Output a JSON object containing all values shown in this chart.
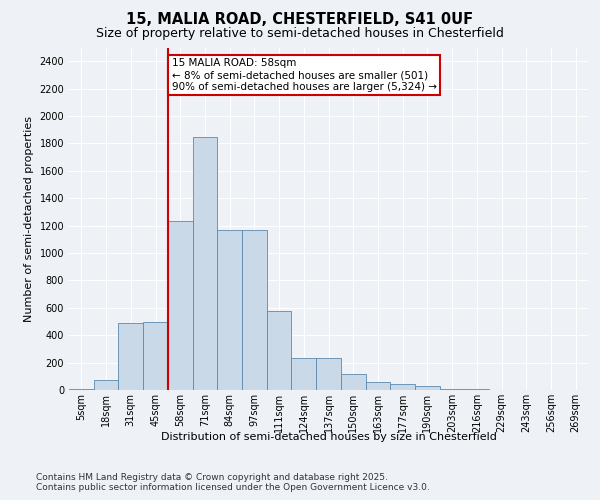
{
  "title1": "15, MALIA ROAD, CHESTERFIELD, S41 0UF",
  "title2": "Size of property relative to semi-detached houses in Chesterfield",
  "xlabel": "Distribution of semi-detached houses by size in Chesterfield",
  "ylabel": "Number of semi-detached properties",
  "property_label": "15 MALIA ROAD: 58sqm",
  "pct_smaller": "8%",
  "pct_larger": "90%",
  "n_smaller": "501",
  "n_larger": "5,324",
  "categories": [
    "5sqm",
    "18sqm",
    "31sqm",
    "45sqm",
    "58sqm",
    "71sqm",
    "84sqm",
    "97sqm",
    "111sqm",
    "124sqm",
    "137sqm",
    "150sqm",
    "163sqm",
    "177sqm",
    "190sqm",
    "203sqm",
    "216sqm",
    "229sqm",
    "243sqm",
    "256sqm",
    "269sqm"
  ],
  "values": [
    10,
    75,
    490,
    500,
    1230,
    1850,
    1170,
    1170,
    580,
    235,
    235,
    115,
    55,
    45,
    30,
    10,
    5,
    0,
    0,
    0,
    0
  ],
  "bar_color": "#c9d9e8",
  "bar_edge_color": "#5a8ab0",
  "vline_color": "#cc0000",
  "vline_x_index": 4,
  "annotation_box_color": "#cc0000",
  "bg_color": "#eef2f7",
  "ylim": [
    0,
    2500
  ],
  "yticks": [
    0,
    200,
    400,
    600,
    800,
    1000,
    1200,
    1400,
    1600,
    1800,
    2000,
    2200,
    2400
  ],
  "footer": "Contains HM Land Registry data © Crown copyright and database right 2025.\nContains public sector information licensed under the Open Government Licence v3.0.",
  "title_fontsize": 10.5,
  "subtitle_fontsize": 9,
  "ylabel_fontsize": 8,
  "tick_fontsize": 7,
  "annot_fontsize": 7.5,
  "footer_fontsize": 6.5
}
